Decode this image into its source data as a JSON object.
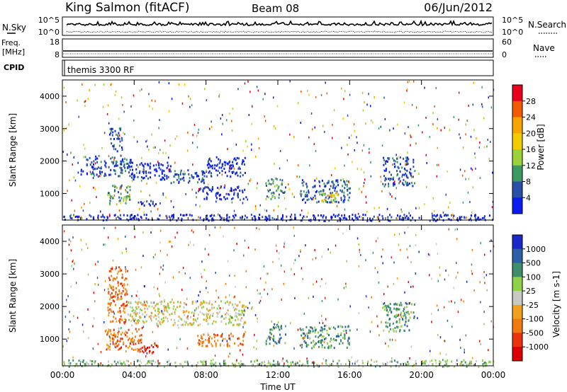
{
  "header": {
    "station": "King Salmon (fitACF)",
    "beam": "Beam 08",
    "date": "06/Jun/2012"
  },
  "nsky_panel": {
    "left_label": "N.Sky",
    "right_label": "N.Search",
    "left_ticks": [
      "10^5",
      "10^0"
    ],
    "right_ticks": [
      "10^5",
      "10^0"
    ]
  },
  "freq_panel": {
    "left_label_1": "Freq.",
    "left_label_2": "[MHz]",
    "right_label": "Nave",
    "left_ticks": [
      "18",
      "8"
    ],
    "right_ticks": [
      "60",
      "0"
    ]
  },
  "cpid_panel": {
    "label": "CPID",
    "mode": "themis 3300 RF"
  },
  "power_colorbar": {
    "label": "Power [dB]",
    "ticks": [
      "28",
      "24",
      "20",
      "16",
      "12",
      "8",
      "4"
    ],
    "colors": [
      "#e8001e",
      "#f25a00",
      "#f7a400",
      "#f2cc00",
      "#9bd23a",
      "#3d9962",
      "#2a4fa8",
      "#0b1cf0"
    ]
  },
  "velocity_colorbar": {
    "label": "Velocity [m s-1]",
    "ticks": [
      "1000",
      "500",
      "100",
      "25",
      "-25",
      "-100",
      "-500",
      "-1000"
    ],
    "colors": [
      "#1a28c8",
      "#2d5fa8",
      "#3e8e6a",
      "#8fd24a",
      "#c9c9c4",
      "#f0a01e",
      "#f07a10",
      "#e8330c",
      "#dd0000"
    ]
  },
  "x_axis": {
    "label": "Time UT",
    "ticks": [
      "00:00",
      "04:00",
      "08:00",
      "12:00",
      "16:00",
      "20:00",
      "00:00"
    ]
  },
  "chart_data": [
    {
      "type": "heatmap",
      "name": "power",
      "ylabel": "Slant Range [km]",
      "xlabel": "",
      "x_unit_hours": [
        0,
        24
      ],
      "ylim": [
        180,
        4500
      ],
      "y_ticks": [
        1000,
        2000,
        3000,
        4000
      ],
      "regions": [
        {
          "t0": 1.0,
          "t1": 3.8,
          "r0": 1550,
          "r1": 2200,
          "level": 6
        },
        {
          "t0": 3.8,
          "t1": 6.0,
          "r0": 1450,
          "r1": 2000,
          "level": 7
        },
        {
          "t0": 6.0,
          "t1": 8.0,
          "r0": 1350,
          "r1": 1750,
          "level": 6
        },
        {
          "t0": 8.0,
          "t1": 10.2,
          "r0": 1550,
          "r1": 2150,
          "level": 7
        },
        {
          "t0": 2.5,
          "t1": 3.8,
          "r0": 650,
          "r1": 1300,
          "level": 5
        },
        {
          "t0": 4.2,
          "t1": 5.2,
          "r0": 650,
          "r1": 850,
          "level": 7
        },
        {
          "t0": 7.5,
          "t1": 10.2,
          "r0": 850,
          "r1": 1250,
          "level": 7
        },
        {
          "t0": 11.3,
          "t1": 12.4,
          "r0": 850,
          "r1": 1500,
          "level": 5
        },
        {
          "t0": 13.2,
          "t1": 16.0,
          "r0": 750,
          "r1": 1450,
          "level": 6
        },
        {
          "t0": 14.4,
          "t1": 15.4,
          "r0": 750,
          "r1": 1100,
          "level": 3
        },
        {
          "t0": 17.8,
          "t1": 19.6,
          "r0": 1250,
          "r1": 2150,
          "level": 6
        },
        {
          "t0": 2.6,
          "t1": 3.3,
          "r0": 2300,
          "r1": 3050,
          "level": 6
        },
        {
          "t0": 0.0,
          "t1": 24.0,
          "r0": 180,
          "r1": 380,
          "level": 7
        }
      ]
    },
    {
      "type": "heatmap",
      "name": "velocity",
      "ylabel": "Slant Range [km]",
      "xlabel": "Time UT",
      "x_unit_hours": [
        0,
        24
      ],
      "ylim": [
        180,
        4500
      ],
      "y_ticks": [
        1000,
        2000,
        3000,
        4000
      ],
      "regions": [
        {
          "t0": 2.5,
          "t1": 3.6,
          "r0": 1500,
          "r1": 3300,
          "level": 6
        },
        {
          "t0": 3.6,
          "t1": 10.2,
          "r0": 1450,
          "r1": 2200,
          "level": 4
        },
        {
          "t0": 2.3,
          "t1": 4.4,
          "r0": 650,
          "r1": 1350,
          "level": 6
        },
        {
          "t0": 4.2,
          "t1": 5.3,
          "r0": 600,
          "r1": 950,
          "level": 7
        },
        {
          "t0": 7.5,
          "t1": 10.2,
          "r0": 800,
          "r1": 1200,
          "level": 6
        },
        {
          "t0": 11.3,
          "t1": 12.4,
          "r0": 850,
          "r1": 1500,
          "level": 2
        },
        {
          "t0": 13.2,
          "t1": 16.0,
          "r0": 750,
          "r1": 1450,
          "level": 2
        },
        {
          "t0": 17.8,
          "t1": 19.6,
          "r0": 1250,
          "r1": 2150,
          "level": 2
        },
        {
          "t0": 0.0,
          "t1": 24.0,
          "r0": 180,
          "r1": 380,
          "level": 3
        }
      ]
    }
  ]
}
